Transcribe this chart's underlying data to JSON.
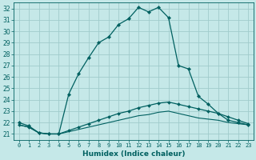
{
  "title": "",
  "xlabel": "Humidex (Indice chaleur)",
  "ylabel": "",
  "bg_color": "#c5e8e8",
  "grid_color": "#a0cccc",
  "line_color": "#006060",
  "xlim": [
    -0.5,
    23.5
  ],
  "ylim": [
    20.5,
    32.5
  ],
  "xticks": [
    0,
    1,
    2,
    3,
    4,
    5,
    6,
    7,
    8,
    9,
    10,
    11,
    12,
    13,
    14,
    15,
    16,
    17,
    18,
    19,
    20,
    21,
    22,
    23
  ],
  "yticks": [
    21,
    22,
    23,
    24,
    25,
    26,
    27,
    28,
    29,
    30,
    31,
    32
  ],
  "line1_x": [
    0,
    1,
    2,
    3,
    4,
    5,
    6,
    7,
    8,
    9,
    10,
    11,
    12,
    13,
    14,
    15,
    16,
    17,
    18,
    19,
    20,
    21,
    22,
    23
  ],
  "line1_y": [
    22.0,
    21.7,
    21.1,
    21.0,
    21.0,
    24.5,
    26.3,
    27.7,
    29.0,
    29.5,
    30.6,
    31.1,
    32.1,
    31.7,
    32.1,
    31.2,
    27.0,
    26.7,
    24.3,
    23.6,
    22.8,
    22.2,
    22.0,
    21.8
  ],
  "line2_x": [
    0,
    1,
    2,
    3,
    4,
    5,
    6,
    7,
    8,
    9,
    10,
    11,
    12,
    13,
    14,
    15,
    16,
    17,
    18,
    19,
    20,
    21,
    22,
    23
  ],
  "line2_y": [
    21.8,
    21.6,
    21.1,
    21.0,
    21.0,
    21.3,
    21.6,
    21.9,
    22.2,
    22.5,
    22.8,
    23.0,
    23.3,
    23.5,
    23.7,
    23.8,
    23.6,
    23.4,
    23.2,
    23.0,
    22.8,
    22.5,
    22.2,
    21.9
  ],
  "line3_x": [
    0,
    1,
    2,
    3,
    4,
    5,
    6,
    7,
    8,
    9,
    10,
    11,
    12,
    13,
    14,
    15,
    16,
    17,
    18,
    19,
    20,
    21,
    22,
    23
  ],
  "line3_y": [
    21.8,
    21.6,
    21.1,
    21.0,
    21.0,
    21.2,
    21.4,
    21.6,
    21.8,
    22.0,
    22.2,
    22.4,
    22.6,
    22.7,
    22.9,
    23.0,
    22.8,
    22.6,
    22.4,
    22.3,
    22.2,
    22.0,
    21.9,
    21.8
  ]
}
